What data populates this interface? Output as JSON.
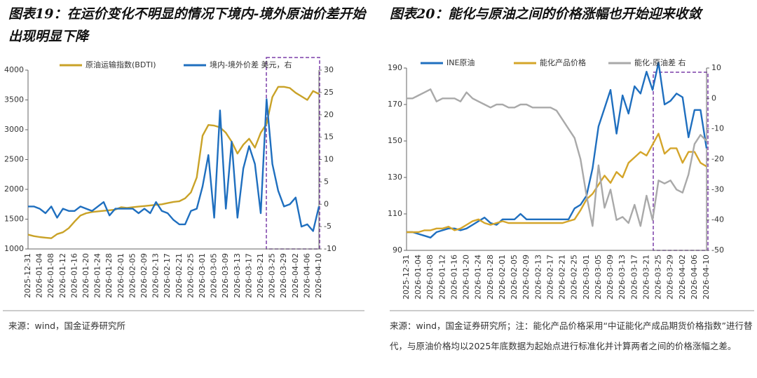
{
  "chart_data": [
    {
      "type": "line",
      "title": "图表19：在运价变化不明显的情况下境内-境外原油价差开始出现明显下降",
      "source": "来源：wind，国金证券研究所",
      "categories": [
        "2025-12-31",
        null,
        "2026-01-04",
        null,
        "2026-01-08",
        null,
        "2026-01-12",
        null,
        "2026-01-16",
        null,
        "2026-01-20",
        null,
        "2026-01-24",
        null,
        "2026-01-28",
        null,
        "2026-02-01",
        null,
        "2026-02-05",
        null,
        "2026-02-09",
        null,
        "2026-02-13",
        null,
        "2026-02-17",
        null,
        "2026-02-21",
        null,
        "2026-02-25",
        null,
        "2026-03-01",
        null,
        "2026-03-05",
        null,
        "2026-03-09",
        null,
        "2026-03-13",
        null,
        "2026-03-17",
        null,
        "2026-03-21",
        null,
        "2026-03-25",
        null,
        "2026-03-29",
        null,
        "2026-04-02",
        null,
        "2026-04-06",
        null,
        "2026-04-10"
      ],
      "series": [
        {
          "name": "原油运输指数(BDTI)",
          "color": "#c9a227",
          "values": [
            1240,
            1215,
            1200,
            1190,
            1180,
            1250,
            1280,
            1350,
            1460,
            1560,
            1600,
            1620,
            1630,
            1640,
            1650,
            1660,
            1700,
            1690,
            1700,
            1710,
            1720,
            1730,
            1740,
            1750,
            1770,
            1790,
            1800,
            1850,
            1950,
            2200,
            2900,
            3080,
            3070,
            3040,
            2950,
            2800,
            2600,
            2750,
            2850,
            2700,
            2950,
            3100,
            3550,
            3720,
            3720,
            3700,
            3620,
            3560,
            3500,
            3650,
            3600
          ]
        },
        {
          "name": "境内-境外价差 美元，右",
          "color": "#1f6fbf",
          "axis": "y2",
          "values": [
            -0.5,
            -0.5,
            -1,
            -2,
            -0.5,
            -3,
            -1,
            -1.5,
            -1.5,
            -0.5,
            -1,
            -1.5,
            -0.5,
            0.5,
            -2.5,
            -1,
            -1,
            -1,
            -1,
            -2,
            -1,
            -2,
            0.5,
            -1.5,
            -2,
            -3.5,
            -4.5,
            -4.5,
            -1.5,
            -1,
            4,
            11,
            -3,
            21,
            -1,
            14,
            -3,
            8,
            13,
            9,
            -2,
            23.5,
            9,
            3,
            -0.5,
            0,
            1.5,
            -5,
            -4.5,
            -6,
            -0.5
          ]
        }
      ],
      "ylim": [
        1000,
        4000
      ],
      "yticks": [
        1000,
        1500,
        2000,
        2500,
        3000,
        3500,
        4000
      ],
      "y2lim": [
        -10,
        30
      ],
      "y2ticks": [
        -10,
        -5,
        0,
        5,
        10,
        15,
        20,
        25,
        30
      ],
      "legend": "top"
    },
    {
      "type": "line",
      "title": "图表20：能化与原油之间的价格涨幅也开始迎来收敛",
      "source": "来源：wind，国金证券研究所；注：能化产品价格采用“中证能化产成品期货价格指数”进行替代，与原油价格均以2025年底数据为起始点进行标准化并计算两者之间的价格涨幅之差。",
      "categories": [
        "2025-12-31",
        null,
        "2026-01-04",
        null,
        "2026-01-08",
        null,
        "2026-01-12",
        null,
        "2026-01-16",
        null,
        "2026-01-20",
        null,
        "2026-01-24",
        null,
        "2026-01-28",
        null,
        "2026-02-01",
        null,
        "2026-02-05",
        null,
        "2026-02-09",
        null,
        "2026-02-13",
        null,
        "2026-02-17",
        null,
        "2026-02-21",
        null,
        "2026-02-25",
        null,
        "2026-03-01",
        null,
        "2026-03-05",
        null,
        "2026-03-09",
        null,
        "2026-03-13",
        null,
        "2026-03-17",
        null,
        "2026-03-21",
        null,
        "2026-03-25",
        null,
        "2026-03-29",
        null,
        "2026-04-02",
        null,
        "2026-04-06",
        null,
        "2026-04-10"
      ],
      "series": [
        {
          "name": "INE原油",
          "color": "#1f6fbf",
          "values": [
            100,
            100,
            99,
            98,
            97,
            100,
            101,
            102,
            102,
            101,
            102,
            104,
            106,
            108,
            105,
            104,
            107,
            107,
            107,
            110,
            107,
            107,
            107,
            107,
            107,
            107,
            107,
            107,
            113,
            115,
            120,
            135,
            158,
            168,
            178,
            154,
            175,
            165,
            180,
            176,
            188,
            178,
            193,
            170,
            172,
            176,
            174,
            152,
            167,
            167,
            146
          ]
        },
        {
          "name": "能化产品价格",
          "color": "#d4a52a",
          "values": [
            100,
            100,
            100,
            101,
            101,
            102,
            102,
            103,
            101,
            102,
            104,
            106,
            107,
            105,
            104,
            105,
            106,
            105,
            105,
            105,
            105,
            105,
            105,
            105,
            105,
            105,
            105,
            106,
            107,
            112,
            118,
            121,
            126,
            131,
            127,
            133,
            130,
            138,
            141,
            144,
            142,
            148,
            154,
            143,
            146,
            146,
            138,
            144,
            144,
            138,
            136
          ]
        },
        {
          "name": "能化-原油差 右",
          "color": "#a9a9a9",
          "axis": "y2",
          "values": [
            0,
            0,
            1,
            2,
            3,
            -1,
            0,
            0,
            0,
            -1,
            2,
            0,
            -1,
            -2,
            -3,
            -2,
            -2,
            -3,
            -3,
            -2,
            -2,
            -3,
            -3,
            -3,
            -3,
            -4,
            -7,
            -10,
            -13,
            -20,
            -32,
            -42,
            -22,
            -36,
            -30,
            -40,
            -39,
            -41,
            -35,
            -42,
            -32,
            -40,
            -27,
            -28,
            -27,
            -30,
            -31,
            -25,
            -15,
            -12,
            -14
          ]
        }
      ],
      "ylim": [
        90,
        190
      ],
      "yticks": [
        90,
        110,
        130,
        150,
        170,
        190
      ],
      "y2lim": [
        -50,
        10
      ],
      "y2ticks": [
        -50,
        -40,
        -30,
        -20,
        -10,
        0,
        10
      ],
      "legend": "top"
    }
  ]
}
